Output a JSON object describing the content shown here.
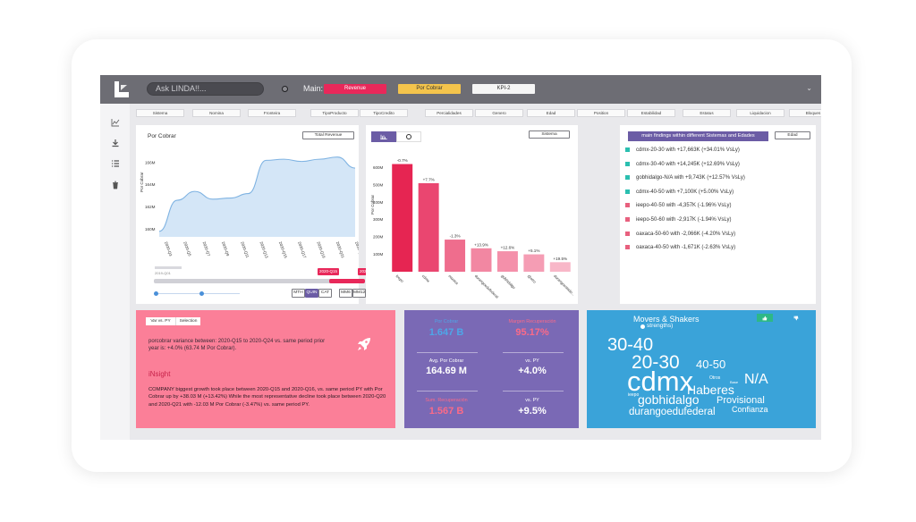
{
  "topbar": {
    "ask_placeholder": "Ask LINDA!!...",
    "main_label": "Main:",
    "tabs": [
      {
        "label": "Revenue",
        "color": "#e8285a",
        "text": "#ffffff"
      },
      {
        "label": "Por Cobrar",
        "color": "#f4c44c",
        "text": "#333333"
      },
      {
        "label": "KPI-2",
        "color": "#f5f5f5",
        "text": "#333333"
      }
    ],
    "chevron": "⌄"
  },
  "sidebar": {
    "icons": [
      "chart-icon",
      "download-icon",
      "list-icon",
      "trash-icon"
    ]
  },
  "filters": [
    "Sistema",
    "Nomina",
    "Fronteira",
    "TipoProducto",
    "TipoCredito",
    "Percialidades",
    "Genero",
    "Edad",
    "Position",
    "Estabilidad",
    "Estatus",
    "Liquidacion",
    "Bloques"
  ],
  "line_card": {
    "title": "Por Cobrar",
    "button": "Total Revenue",
    "range_start": "2020-Q15",
    "range_end": "2020-Q24",
    "range_small": "2019-Q01",
    "buttons_a": [
      "MTH",
      "QUIN",
      "CAT"
    ],
    "buttons_b": [
      "MM6",
      "MM12"
    ]
  },
  "bar_card": {
    "button": "Sistema"
  },
  "findings": {
    "title": "main findings within different Sistemas and Edades",
    "button": "Edad",
    "items": [
      {
        "text": "cdmx-20-30 with +17,663K (+34.01% VsLy)",
        "color": "#2bbfb0"
      },
      {
        "text": "cdmx-30-40 with +14,245K (+12.69% VsLy)",
        "color": "#2bbfb0"
      },
      {
        "text": "gobhidalgo-N/A with +9,743K (+12.57% VsLy)",
        "color": "#2bbfb0"
      },
      {
        "text": "cdmx-40-50 with +7,100K (+5.00% VsLy)",
        "color": "#2bbfb0"
      },
      {
        "text": "ieepo-40-50 with -4,357K (-1.96% VsLy)",
        "color": "#e8607e"
      },
      {
        "text": "ieepo-50-60 with -2,917K (-1.94% VsLy)",
        "color": "#e8607e"
      },
      {
        "text": "oaxaca-50-60 with -2,066K (-4.20% VsLy)",
        "color": "#e8607e"
      },
      {
        "text": "oaxaca-40-50 with -1,671K (-2.63% VsLy)",
        "color": "#e8607e"
      }
    ]
  },
  "insight": {
    "tab_a": "Var vs. PY",
    "tab_b": "Selection",
    "summary": "porcobrar variance between: 2020-Q15 to 2020-Q24 vs. same period prior year is: +4.0% (63.74 M Por Cobrar).",
    "heading": "iNsight",
    "body": "COMPANY biggest growth took place between 2020-Q15 and 2020-Q16, vs. same period PY with Por Cobrar up by +38.03 M (+13.42%) While the most representative decline took place between 2020-Q20 and 2020-Q21 with -12.03 M Por Cobrar (-3.47%) vs. same period PY."
  },
  "kpis": {
    "por_cobrar_label": "Por Cobrar",
    "por_cobrar_value": "1.647 B",
    "margen_label": "Margen Recuperación",
    "margen_value": "95.17%",
    "avg_label": "Avg. Por Cobrar",
    "avg_value": "164.69 M",
    "vs_py_label_1": "vs. PY",
    "vs_py_value_1": "+4.0%",
    "sum_label": "Sum. Recuperación",
    "sum_value": "1.567 B",
    "vs_py_label_2": "vs. PY",
    "vs_py_value_2": "+9.5%"
  },
  "movers": {
    "title": "Movers & Shakers",
    "subtitle": "strengths)",
    "words": [
      "30-40",
      "20-30",
      "40-50",
      "cdmx",
      "N/A",
      "Otros",
      "Base",
      "Haberes",
      "ieepo",
      "gobhidalgo",
      "Provisional",
      "durangoedufederal",
      "Confianza"
    ]
  },
  "chart_data": [
    {
      "type": "area",
      "title": "Por Cobrar",
      "ylabel": "Por Cobrar",
      "categories": [
        "2020-Q3",
        "2020-Q5",
        "2020-Q7",
        "2020-Q9",
        "2020-Q11",
        "2020-Q13",
        "2020-Q15",
        "2020-Q17",
        "2020-Q19",
        "2020-Q21",
        "2020-Q23",
        "2020-Q24"
      ],
      "y_ticks": [
        "160M",
        "162M",
        "164M",
        "166M"
      ],
      "x_ticks": [
        "2020-Q3",
        "2020-Q5",
        "2020-Q7",
        "2020-Q9",
        "2020-Q11",
        "2020-Q13",
        "2020-Q15",
        "2020-Q17",
        "2020-Q19",
        "2020-Q21",
        "2020-Q24"
      ],
      "values": [
        159.8,
        162.6,
        163.4,
        162.7,
        162.8,
        163.2,
        166.2,
        166.3,
        166.1,
        166.3,
        166.5,
        165.5
      ],
      "ylim": [
        159.3,
        167.6
      ]
    },
    {
      "type": "bar",
      "ylabel": "Por Cobrar",
      "categories": [
        "ieepo",
        "cdmx",
        "oaxaca",
        "durangoedufederal",
        "gobhidalgo",
        "@otro",
        "durangoestado..."
      ],
      "values": [
        620,
        510,
        185,
        135,
        118,
        100,
        55
      ],
      "labels": [
        "-0.7%",
        "+7.7%",
        "-1.3%",
        "+13.9%",
        "+12.6%",
        "+5.1%",
        "+19.5%"
      ],
      "colors": [
        "#e62552",
        "#ea4670",
        "#ef6d8d",
        "#f287a2",
        "#f490aa",
        "#f59db4",
        "#f8b7c8"
      ],
      "y_ticks": [
        "100M",
        "200M",
        "300M",
        "400M",
        "500M",
        "600M"
      ],
      "ylim": [
        0,
        700
      ]
    }
  ]
}
